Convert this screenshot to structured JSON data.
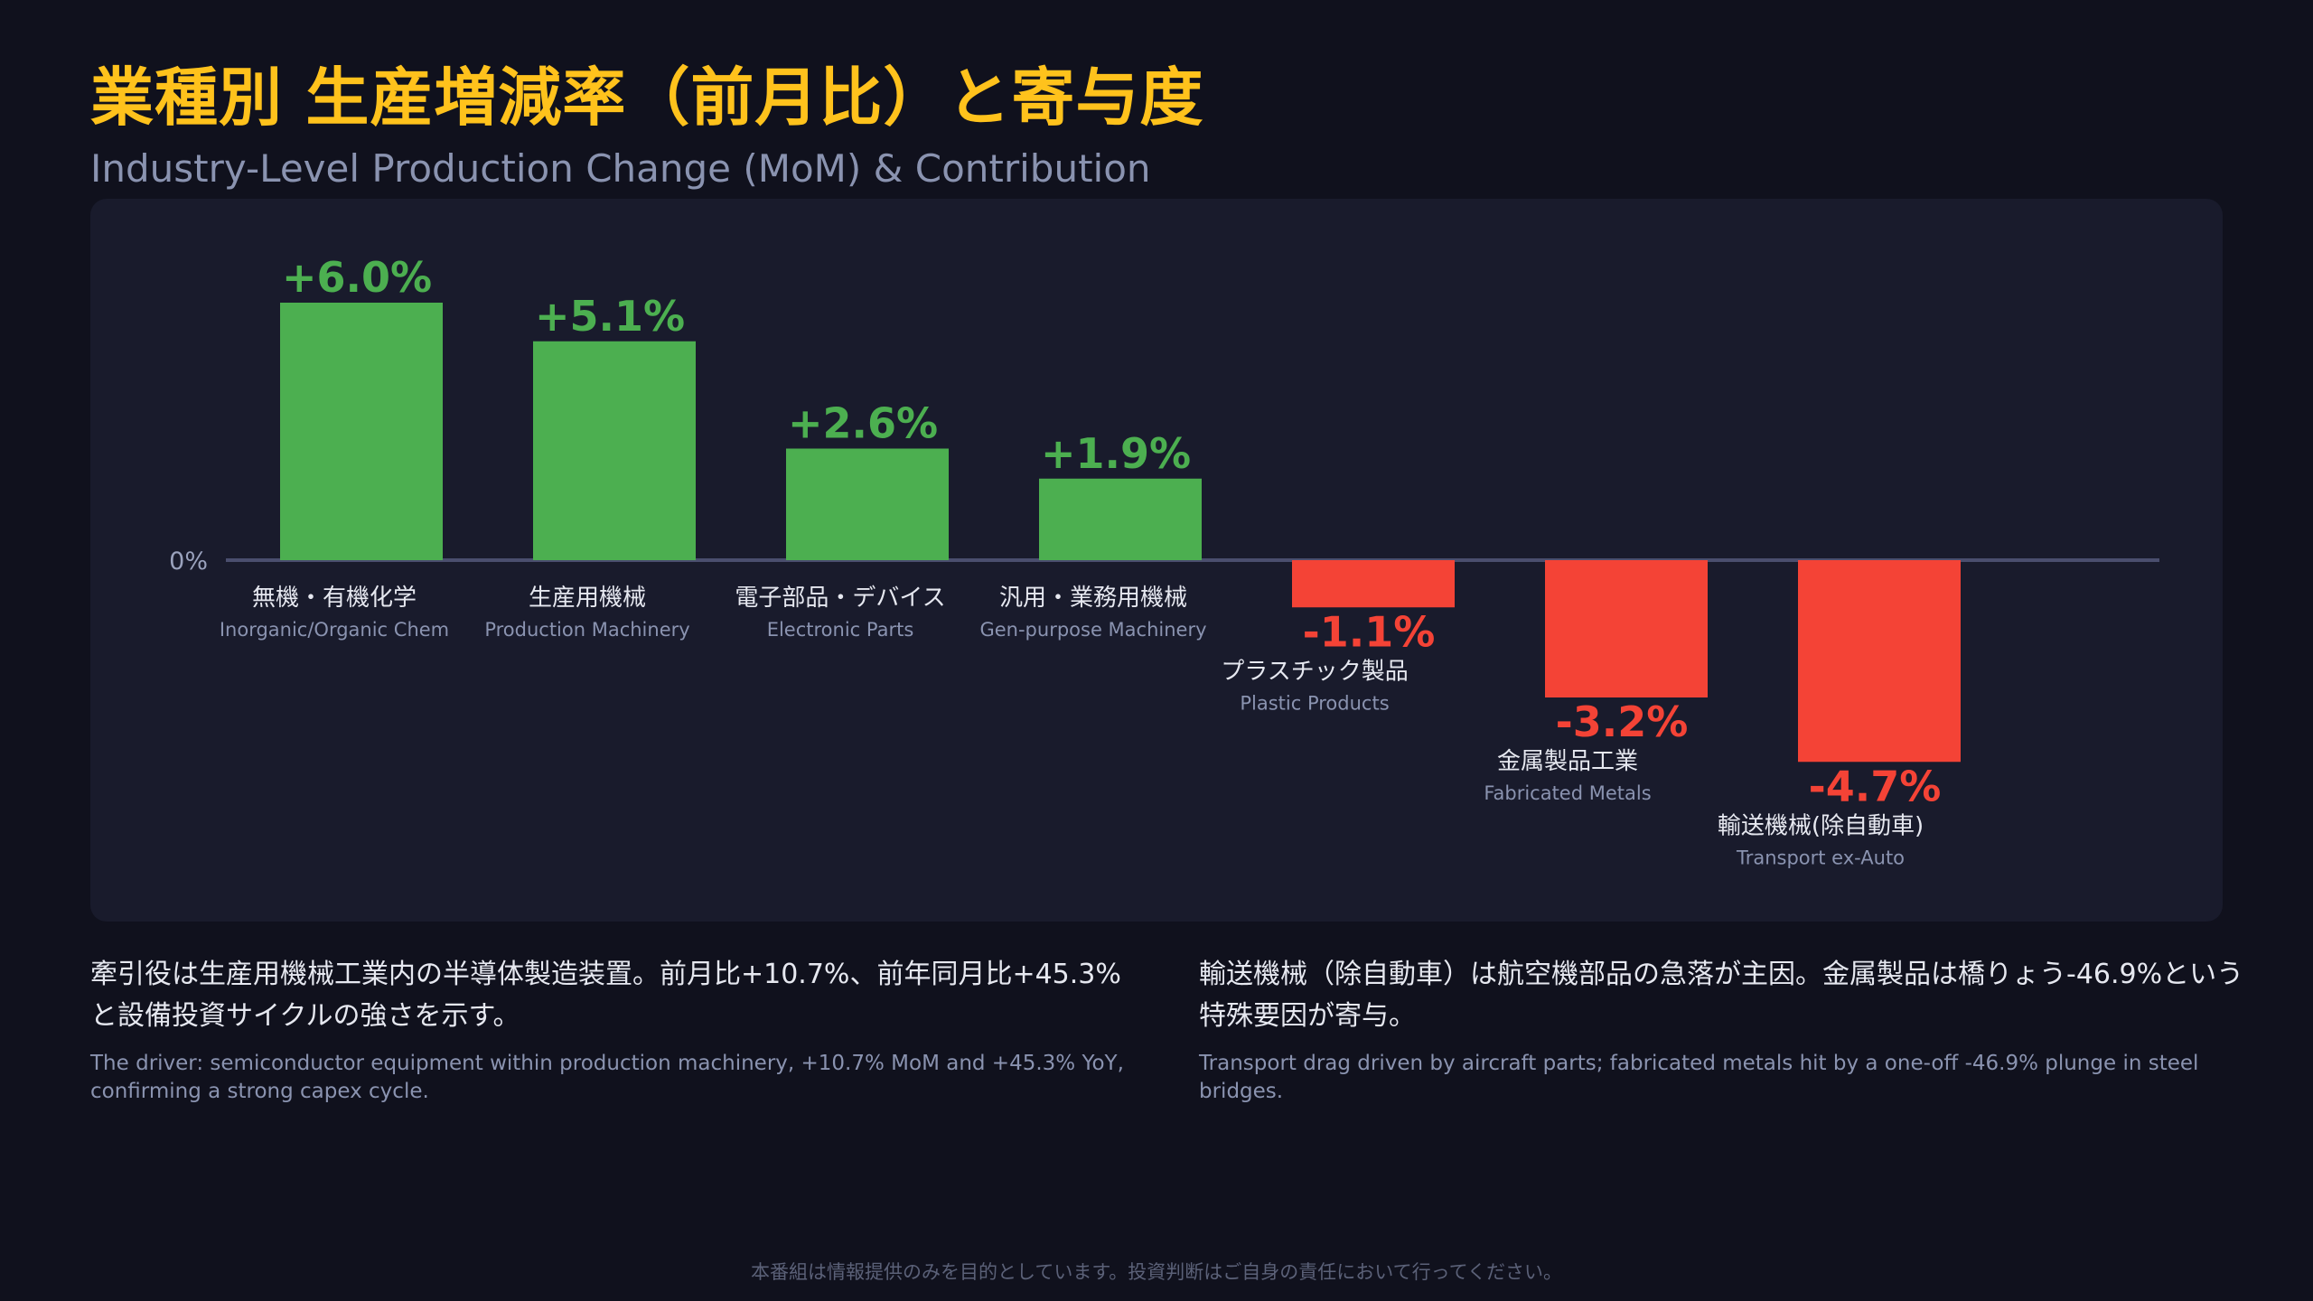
{
  "title": "業種別 生産増減率（前月比）と寄与度",
  "subtitle": "Industry-Level Production Change (MoM) & Contribution",
  "colors": {
    "background": "#10111d",
    "panel": "#191b2c",
    "title": "#ffc21c",
    "positive": "#4caf50",
    "negative": "#f44336",
    "baseline": "#4a4e6e",
    "muted_text": "#8a93b0"
  },
  "chart_data": {
    "type": "bar",
    "zero_label": "0%",
    "unit": "%",
    "value_labels": [
      "+6.0%",
      "+5.1%",
      "+2.6%",
      "+1.9%",
      "-1.1%",
      "-3.2%",
      "-4.7%"
    ],
    "categories": [
      "無機・有機化学",
      "生産用機械",
      "電子部品・デバイス",
      "汎用・業務用機械",
      "プラスチック製品",
      "金属製品工業",
      "輸送機械(除自動車)"
    ],
    "categories_en": [
      "Inorganic/Organic Chem",
      "Production Machinery",
      "Electronic Parts",
      "Gen-purpose Machinery",
      "Plastic Products",
      "Fabricated Metals",
      "Transport ex-Auto"
    ],
    "values": [
      6.0,
      5.1,
      2.6,
      1.9,
      -1.1,
      -3.2,
      -4.7
    ]
  },
  "notes": {
    "left": {
      "jp": "牽引役は生産用機械工業内の半導体製造装置。前月比+10.7%、前年同月比+45.3%と設備投資サイクルの強さを示す。",
      "en": "The driver: semiconductor equipment within production machinery, +10.7% MoM and +45.3% YoY, confirming a strong capex cycle."
    },
    "right": {
      "jp": "輸送機械（除自動車）は航空機部品の急落が主因。金属製品は橋りょう-46.9%という特殊要因が寄与。",
      "en": "Transport drag driven by aircraft parts; fabricated metals hit by a one-off -46.9% plunge in steel bridges."
    }
  },
  "disclaimer": "本番組は情報提供のみを目的としています。投資判断はご自身の責任において行ってください。"
}
